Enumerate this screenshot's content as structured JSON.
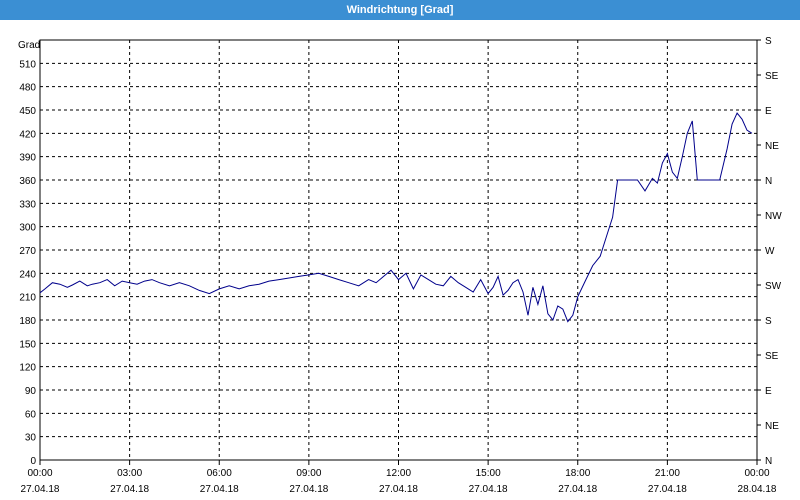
{
  "window": {
    "title": "Windrichtung [Grad]"
  },
  "chart_data": {
    "type": "line",
    "title": "Windrichtung [Grad]",
    "ylabel": "Grad",
    "ylim": [
      0,
      540
    ],
    "y_ticks": [
      0,
      30,
      60,
      90,
      120,
      150,
      180,
      210,
      240,
      270,
      300,
      330,
      360,
      390,
      420,
      450,
      480,
      510
    ],
    "xlim": [
      "27.04.18 00:00",
      "28.04.18 00:00"
    ],
    "x_ticks": [
      {
        "time": "00:00",
        "date": "27.04.18"
      },
      {
        "time": "03:00",
        "date": "27.04.18"
      },
      {
        "time": "06:00",
        "date": "27.04.18"
      },
      {
        "time": "09:00",
        "date": "27.04.18"
      },
      {
        "time": "12:00",
        "date": "27.04.18"
      },
      {
        "time": "15:00",
        "date": "27.04.18"
      },
      {
        "time": "18:00",
        "date": "27.04.18"
      },
      {
        "time": "21:00",
        "date": "27.04.18"
      },
      {
        "time": "00:00",
        "date": "28.04.18"
      }
    ],
    "right_axis_labels": [
      "N",
      "NE",
      "E",
      "SE",
      "S",
      "SW",
      "W",
      "NW",
      "N",
      "NE",
      "E",
      "SE",
      "S"
    ],
    "grid": true,
    "line_color": "#00008b",
    "series": [
      {
        "x": [
          "27.04.18 00:00",
          "27.04.18 00:10",
          "27.04.18 00:25",
          "27.04.18 00:40",
          "27.04.18 00:55",
          "27.04.18 01:05",
          "27.04.18 01:20",
          "27.04.18 01:35",
          "27.04.18 01:45",
          "27.04.18 02:00",
          "27.04.18 02:15",
          "27.04.18 02:30",
          "27.04.18 02:45",
          "27.04.18 03:00",
          "27.04.18 03:15",
          "27.04.18 03:30",
          "27.04.18 03:45",
          "27.04.18 04:00",
          "27.04.18 04:20",
          "27.04.18 04:40",
          "27.04.18 05:00",
          "27.04.18 05:20",
          "27.04.18 05:40",
          "27.04.18 06:00",
          "27.04.18 06:20",
          "27.04.18 06:40",
          "27.04.18 07:00",
          "27.04.18 07:20",
          "27.04.18 07:40",
          "27.04.18 08:00",
          "27.04.18 08:20",
          "27.04.18 08:40",
          "27.04.18 09:00",
          "27.04.18 09:20",
          "27.04.18 09:40",
          "27.04.18 10:00",
          "27.04.18 10:20",
          "27.04.18 10:40",
          "27.04.18 11:00",
          "27.04.18 11:15",
          "27.04.18 11:30",
          "27.04.18 11:45",
          "27.04.18 12:00",
          "27.04.18 12:15",
          "27.04.18 12:30",
          "27.04.18 12:45",
          "27.04.18 13:00",
          "27.04.18 13:15",
          "27.04.18 13:30",
          "27.04.18 13:45",
          "27.04.18 14:00",
          "27.04.18 14:15",
          "27.04.18 14:30",
          "27.04.18 14:45",
          "27.04.18 15:00",
          "27.04.18 15:10",
          "27.04.18 15:20",
          "27.04.18 15:30",
          "27.04.18 15:40",
          "27.04.18 15:50",
          "27.04.18 16:00",
          "27.04.18 16:10",
          "27.04.18 16:20",
          "27.04.18 16:30",
          "27.04.18 16:40",
          "27.04.18 16:50",
          "27.04.18 17:00",
          "27.04.18 17:10",
          "27.04.18 17:20",
          "27.04.18 17:30",
          "27.04.18 17:40",
          "27.04.18 17:50",
          "27.04.18 18:00",
          "27.04.18 18:15",
          "27.04.18 18:30",
          "27.04.18 18:45",
          "27.04.18 19:00",
          "27.04.18 19:10",
          "27.04.18 19:20",
          "27.04.18 19:30",
          "27.04.18 19:45",
          "27.04.18 20:00",
          "27.04.18 20:15",
          "27.04.18 20:30",
          "27.04.18 20:40",
          "27.04.18 20:50",
          "27.04.18 21:00",
          "27.04.18 21:10",
          "27.04.18 21:20",
          "27.04.18 21:30",
          "27.04.18 21:40",
          "27.04.18 21:50",
          "27.04.18 22:00",
          "27.04.18 22:15",
          "27.04.18 22:30",
          "27.04.18 22:45",
          "27.04.18 23:00",
          "27.04.18 23:10",
          "27.04.18 23:20",
          "27.04.18 23:30",
          "27.04.18 23:40",
          "27.04.18 23:50"
        ],
        "y": [
          215,
          220,
          228,
          226,
          222,
          225,
          230,
          224,
          226,
          228,
          232,
          224,
          230,
          228,
          226,
          230,
          232,
          228,
          224,
          228,
          224,
          218,
          214,
          220,
          224,
          220,
          224,
          226,
          230,
          232,
          234,
          236,
          238,
          240,
          236,
          232,
          228,
          224,
          232,
          228,
          236,
          244,
          232,
          240,
          220,
          238,
          232,
          226,
          224,
          236,
          228,
          222,
          216,
          232,
          214,
          222,
          236,
          212,
          218,
          228,
          232,
          216,
          186,
          222,
          200,
          224,
          188,
          180,
          198,
          194,
          178,
          186,
          210,
          230,
          250,
          262,
          292,
          312,
          360,
          360,
          360,
          360,
          346,
          362,
          356,
          382,
          394,
          370,
          362,
          390,
          420,
          436,
          360,
          360,
          360,
          360,
          400,
          432,
          446,
          438,
          424,
          420
        ]
      }
    ]
  }
}
